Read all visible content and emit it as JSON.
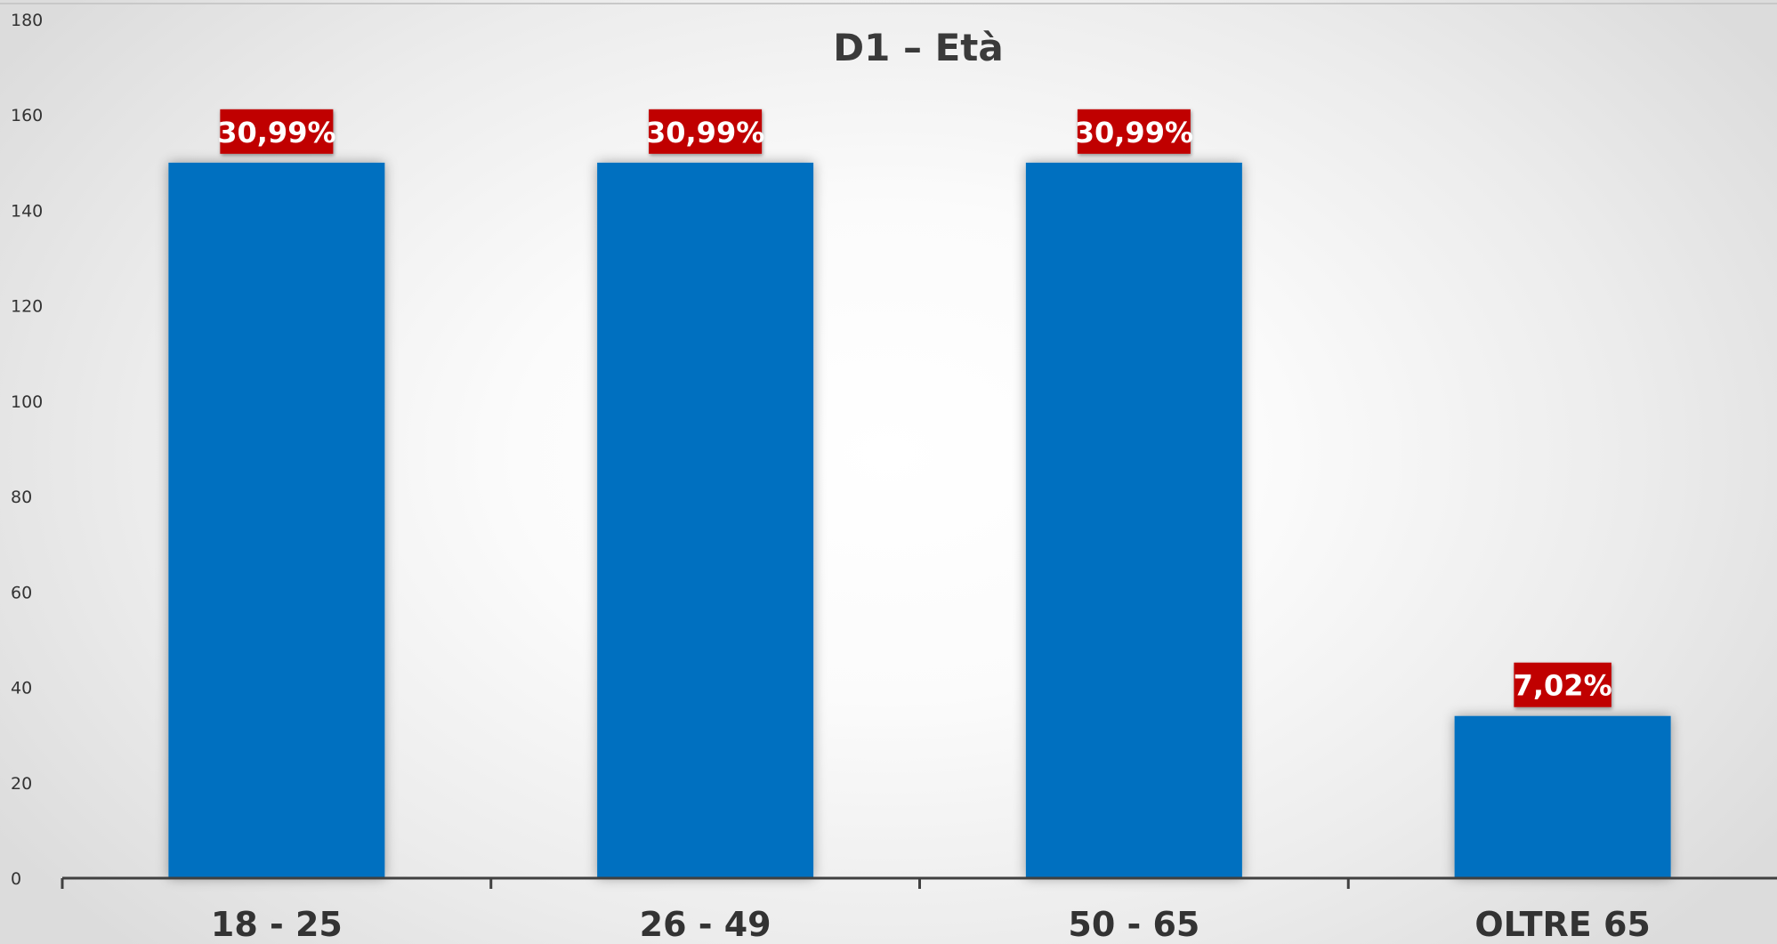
{
  "chart_data": {
    "type": "bar",
    "title": "D1 – Età",
    "categories": [
      "18 - 25",
      "26 - 49",
      "50 - 65",
      "OLTRE 65"
    ],
    "values": [
      150,
      150,
      150,
      34
    ],
    "data_labels": [
      "30,99%",
      "30,99%",
      "30,99%",
      "7,02%"
    ],
    "xlabel": "",
    "ylabel": "",
    "ylim": [
      0,
      180
    ],
    "yticks": [
      0,
      20,
      40,
      60,
      80,
      100,
      120,
      140,
      160,
      180
    ],
    "grid": false,
    "legend": "none",
    "colors": {
      "bar": "#0070c0",
      "data_label_bg": "#c00000",
      "axis": "#404040",
      "text": "#333333"
    }
  }
}
